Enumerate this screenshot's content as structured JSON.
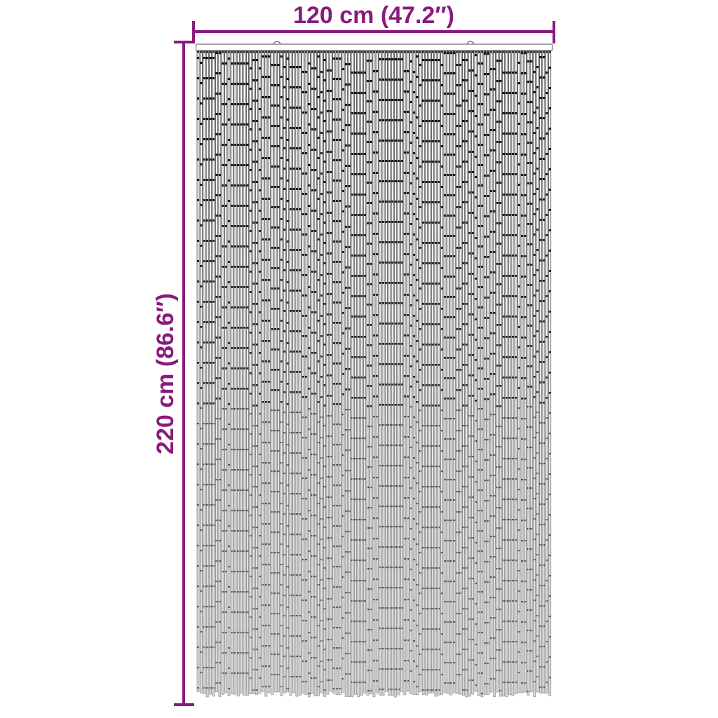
{
  "page": {
    "description": "Product dimension diagram of a bamboo bead door curtain hanging from a slat rail with two hooks"
  },
  "dimensions": {
    "width_label": "120 cm (47.2″)",
    "height_label": "220 cm (86.6″)"
  },
  "colors": {
    "accent": "#8A1A7D",
    "background": "#ffffff",
    "rail_stroke": "#6e6e6e",
    "strand_stroke_top": "#383838",
    "strand_stroke_bottom": "#9a9a9a",
    "tube_fill_top": "#fcfcfc",
    "tube_fill_bottom": "#d6d6d6",
    "joint_top": "#101010",
    "joint_bottom": "#4e4e4e",
    "attachment_tick": "#2f2f2f"
  },
  "illustration": {
    "type": "bead-curtain-with-hanging-rail",
    "hook_count": 2,
    "strand_count": 115,
    "bead_segment_length": 29
  }
}
